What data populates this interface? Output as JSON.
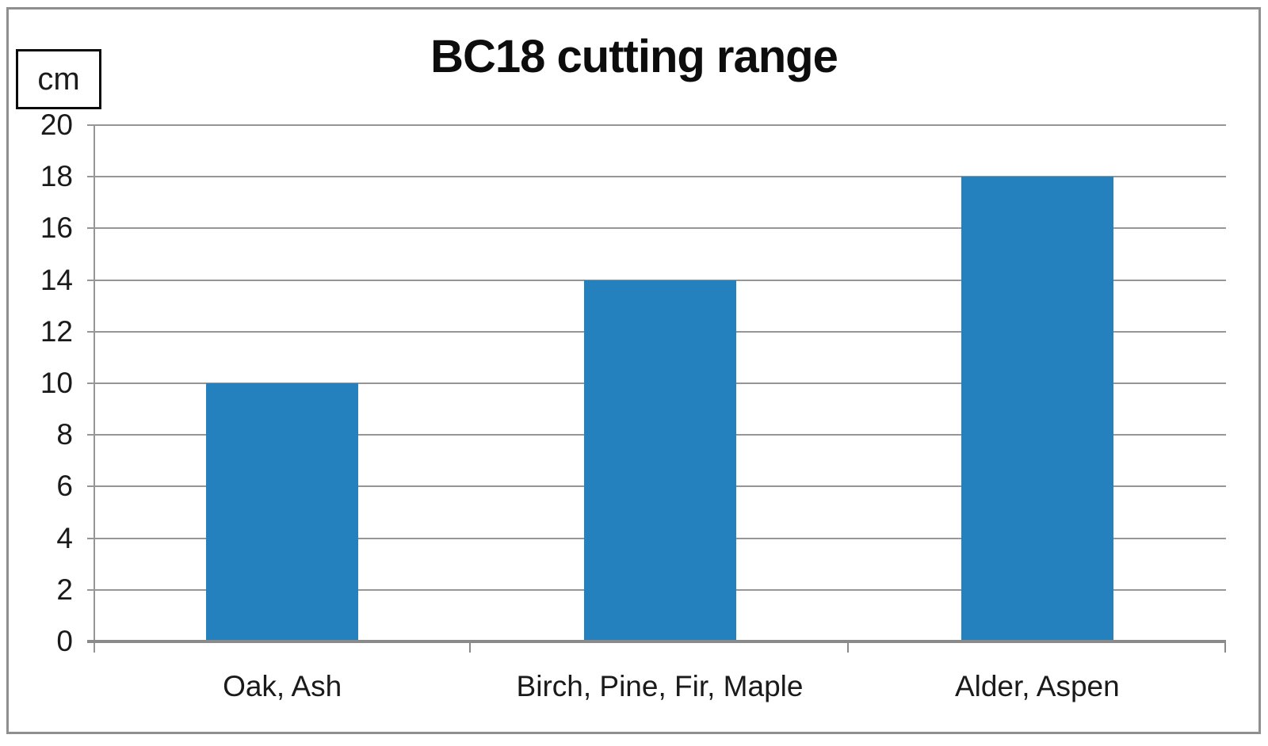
{
  "chart": {
    "title": "BC18 cutting range",
    "unit": "cm"
  },
  "chart_data": {
    "type": "bar",
    "title": "BC18 cutting range",
    "unit_label": "cm",
    "categories": [
      "Oak, Ash",
      "Birch, Pine, Fir, Maple",
      "Alder, Aspen"
    ],
    "values": [
      10,
      14,
      18
    ],
    "xlabel": "",
    "ylabel": "cm",
    "ylim": [
      0,
      20
    ],
    "ytick_step": 2,
    "yticks": [
      0,
      2,
      4,
      6,
      8,
      10,
      12,
      14,
      16,
      18,
      20
    ],
    "grid": "horizontal",
    "legend_position": "none",
    "colors": {
      "bar": "#2481be",
      "gridline": "#969696",
      "axis": "#8a8a8a",
      "frame_border": "#8f8f8f",
      "text": "#1a1a1a",
      "background": "#ffffff"
    }
  }
}
